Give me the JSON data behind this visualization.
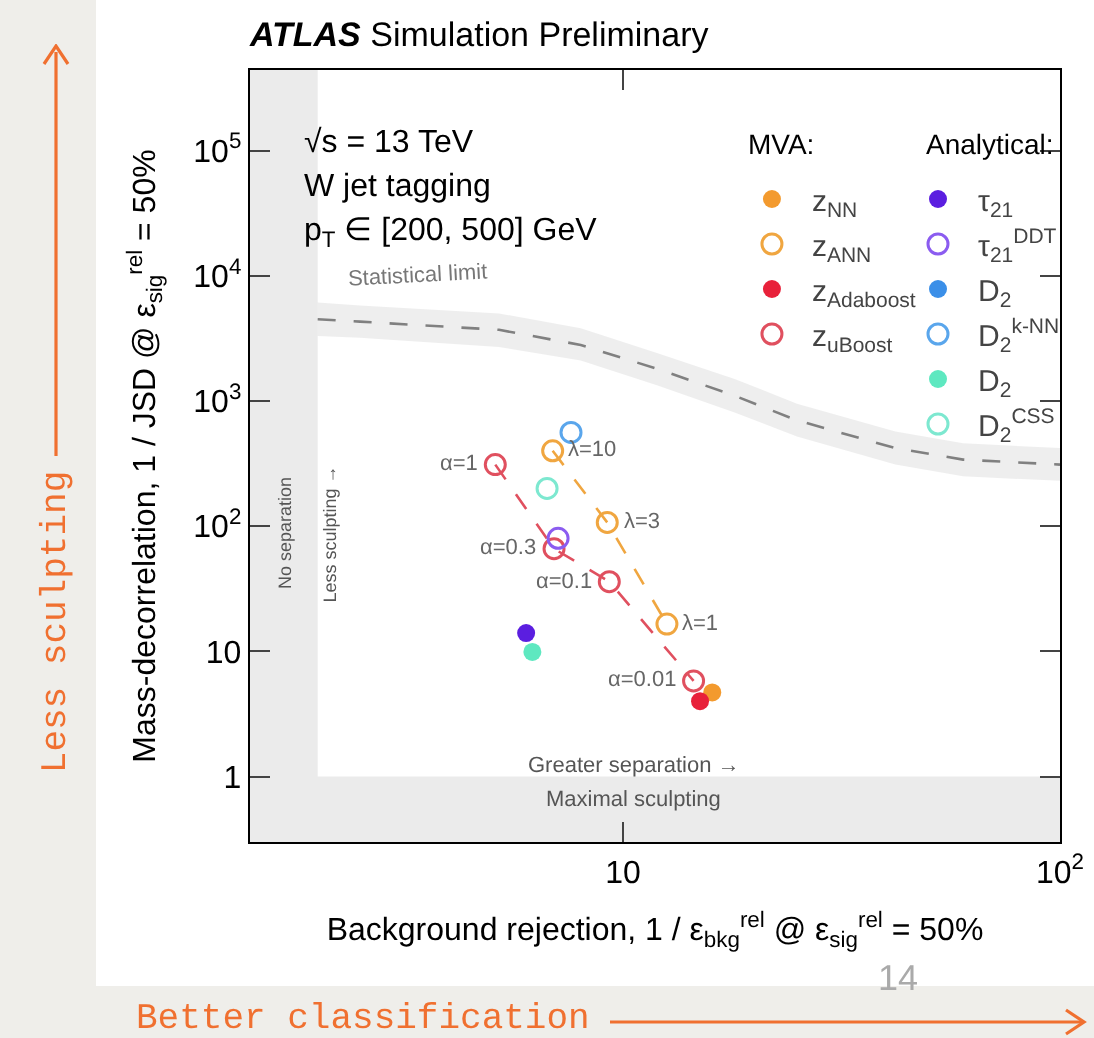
{
  "chart_data": {
    "type": "scatter",
    "title": "ATLAS Simulation Preliminary",
    "xlabel": "Background rejection, 1 / ε$_{bkg}$$^{rel}$ @ ε$_{sig}$$^{rel}$ = 50%",
    "ylabel": "Mass-decorrelation, 1 / JSD @ ε$_{sig}$$^{rel}$ = 50%",
    "log": "xy",
    "grid": false,
    "legend": "top right",
    "marker": "circle",
    "xlim": [
      1.4,
      100
    ],
    "ylim": [
      0.3,
      440000
    ],
    "xticks": [
      10,
      {
        "value": 100,
        "label": "10$^{2}$"
      }
    ],
    "yticks": [
      1,
      10,
      {
        "value": 100,
        "label": "10$^{2}$"
      },
      {
        "value": 1000,
        "label": "10$^{3}$"
      },
      {
        "value": 10000,
        "label": "10$^{4}$"
      },
      {
        "value": 100000,
        "label": "10$^{5}$"
      }
    ],
    "series": [
      {
        "name": "z$_{NN}$",
        "color": "#f39a2e",
        "x": [
          16
        ],
        "values": [
          4.7
        ]
      },
      {
        "name": "z$_{ANN}$",
        "type": "line",
        "line_style": "dashed",
        "color": "#f0a640",
        "x": [
          6.9,
          9.2,
          12.6
        ],
        "values": [
          400,
          107,
          16.5
        ]
      },
      {
        "name": "z$_{Adaboost}$",
        "color": "#e8213a",
        "x": [
          15
        ],
        "values": [
          4.0
        ]
      },
      {
        "name": "z$_{uBoost}$",
        "type": "line",
        "line_style": "dashed",
        "color": "#e0505f",
        "x": [
          5.1,
          6.95,
          9.3,
          14.5
        ],
        "values": [
          310,
          66,
          36,
          5.8
        ]
      },
      {
        "name": "τ$_{21}$",
        "color": "#5b1ee0",
        "x": [
          6.0
        ],
        "values": [
          14
        ]
      },
      {
        "name": "τ$_{21}$$^{DDT}$",
        "type": "line",
        "line_style": "dashed",
        "color": "#8b5cf0",
        "x": [
          7.1
        ],
        "values": [
          80
        ]
      },
      {
        "name": "D$_{2}$",
        "color": "#3b8fe8"
      },
      {
        "name": "D$_{2}$$^{k-NN}$",
        "type": "line",
        "line_style": "dashed",
        "color": "#5aa6ec",
        "x": [
          7.6
        ],
        "values": [
          560
        ]
      },
      {
        "name": "D$_{2}$",
        "color": "#5ee8c0",
        "x": [
          6.2
        ],
        "values": [
          9.9
        ]
      },
      {
        "name": "D$_{2}$$^{CSS}$",
        "type": "line",
        "line_style": "dashed",
        "color": "#7de8d0",
        "x": [
          6.7
        ],
        "values": [
          200
        ]
      },
      {
        "name": "Statistical limit",
        "type": "line",
        "marker": "none",
        "line_style": "dashed",
        "color": "#808080",
        "x": [
          2,
          2.5,
          5.2,
          8,
          12,
          18,
          25,
          42,
          60,
          100
        ],
        "values": [
          4500,
          4300,
          3700,
          2800,
          1800,
          1100,
          700,
          420,
          340,
          310
        ],
        "lower": [
          3300,
          3200,
          2700,
          2100,
          1330,
          810,
          520,
          310,
          250,
          230
        ],
        "upper": [
          6100,
          5800,
          5000,
          3800,
          2400,
          1500,
          950,
          570,
          460,
          420
        ]
      }
    ],
    "bands": [
      {
        "axis": "x",
        "from": 1.4,
        "to": 2,
        "label": "No separation",
        "color": "#ebebeb"
      },
      {
        "axis": "y",
        "from": 0.3,
        "to": 1,
        "label": "Maximal sculpting",
        "color": "#ebebeb"
      }
    ],
    "annotations": [
      "√s = 13 TeV",
      "W jet tagging",
      "p$_{T}$ ∈ [200, 500] GeV",
      "MVA:",
      "Analytical:",
      "Less sculpting →",
      "Greater separation →",
      "Less sculpting",
      "Better classification",
      "14",
      {
        "text": "λ=10",
        "x": 6.9,
        "y": 400
      },
      {
        "text": "λ=3",
        "x": 9.2,
        "y": 107
      },
      {
        "text": "λ=1",
        "x": 12.6,
        "y": 16.5
      },
      {
        "text": "α=1",
        "x": 5.1,
        "y": 310
      },
      {
        "text": "α=0.3",
        "x": 6.95,
        "y": 66
      },
      {
        "text": "α=0.1",
        "x": 9.3,
        "y": 36
      },
      {
        "text": "α=0.01",
        "x": 14.5,
        "y": 5.8
      }
    ]
  }
}
